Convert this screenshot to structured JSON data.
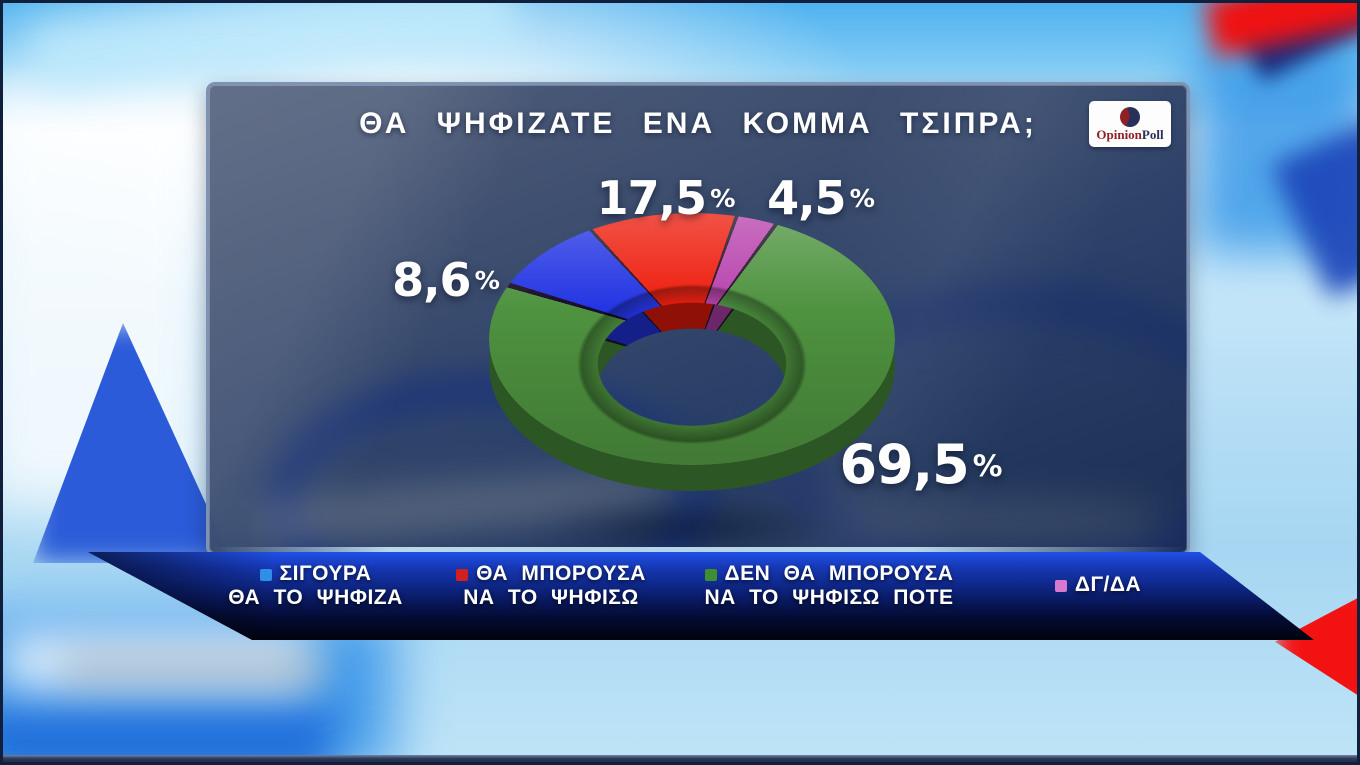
{
  "panel": {
    "title": "ΘΑ ΨΗΦΙΖΑΤΕ ΕΝΑ ΚΟΜΜΑ ΤΣΙΠΡΑ;"
  },
  "logo": {
    "text_red": "Opinion",
    "text_blue": "Poll"
  },
  "chart_data": {
    "type": "pie",
    "variant": "3d-donut",
    "title": "ΘΑ ΨΗΦΙΖΑΤΕ ΕΝΑ ΚΟΜΜΑ ΤΣΙΠΡΑ;",
    "unit": "%",
    "start_angle_deg": 317,
    "legend_position": "bottom",
    "segments": [
      {
        "label": "ΘΑ ΜΠΟΡΟΥΣΑ ΝΑ ΤΟ ΨΗΦΙΣΩ",
        "value": 17.5,
        "display": "17,5",
        "color": "#ee1d0d"
      },
      {
        "label": "ΔΓ/ΔΑ",
        "value": 4.5,
        "display": "4,5",
        "color": "#b843ae"
      },
      {
        "label": "ΔΕΝ ΘΑ ΜΠΟΡΟΥΣΑ ΝΑ ΤΟ ΨΗΦΙΣΩ ΠΟΤΕ",
        "value": 69.5,
        "display": "69,5",
        "color": "#4f9340"
      },
      {
        "label": "ΣΙΓΟΥΡΑ ΘΑ ΤΟ ΨΗΦΙΖΑ",
        "value": 8.6,
        "display": "8,6",
        "color": "#2436e4"
      }
    ]
  },
  "legend": {
    "items": [
      {
        "lines": [
          "ΣΙΓΟΥΡΑ",
          "ΘΑ ΤΟ ΨΗΦΙΖΑ"
        ],
        "swatch_color": "#2e8fe8"
      },
      {
        "lines": [
          "ΘΑ ΜΠΟΡΟΥΣΑ",
          "ΝΑ ΤΟ ΨΗΦΙΣΩ"
        ],
        "swatch_color": "#d41f1f"
      },
      {
        "lines": [
          "ΔΕΝ ΘΑ ΜΠΟΡΟΥΣΑ",
          "ΝΑ ΤΟ ΨΗΦΙΣΩ ΠΟΤΕ"
        ],
        "swatch_color": "#3f8f31"
      },
      {
        "lines": [
          "ΔΓ/ΔΑ"
        ],
        "swatch_color": "#d878ce"
      }
    ]
  }
}
